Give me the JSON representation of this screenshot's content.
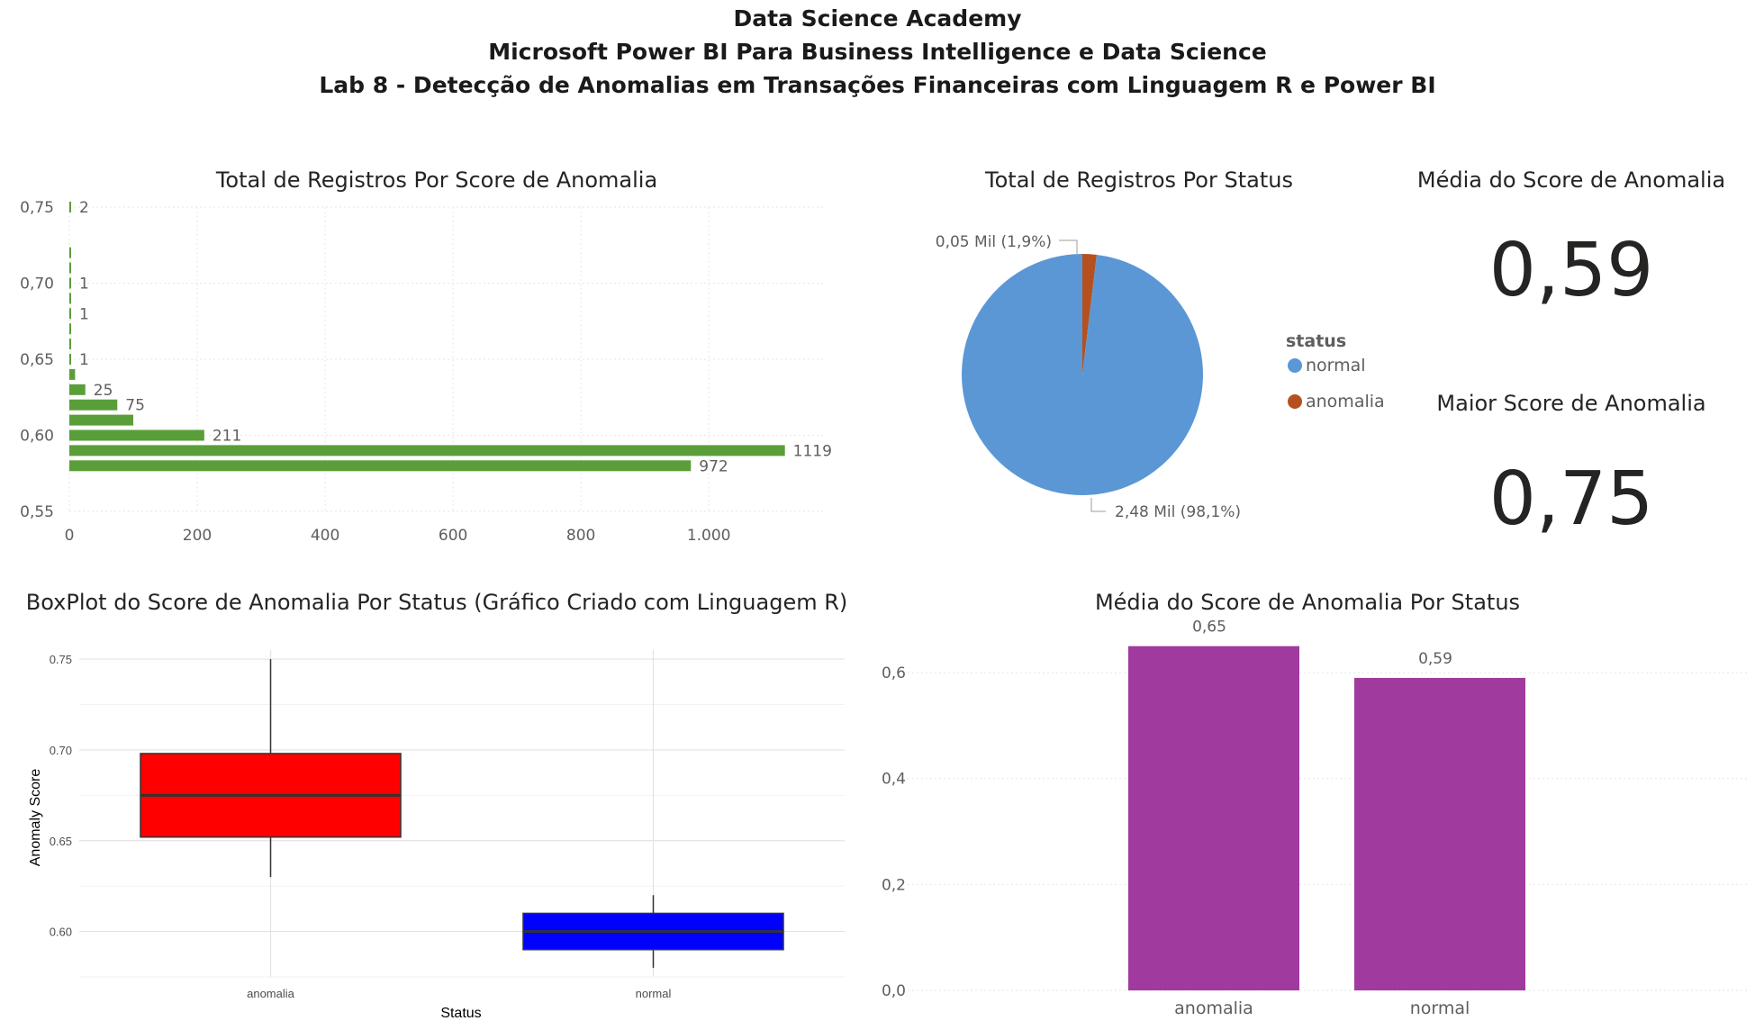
{
  "header": {
    "line1": "Data Science Academy",
    "line2": "Microsoft Power BI Para Business Intelligence e Data Science",
    "line3": "Lab 8 - Detecção de Anomalias em Transações Financeiras com Linguagem R e Power BI"
  },
  "cards": {
    "mean_title": "Média do Score de Anomalia",
    "mean_value": "0,59",
    "max_title": "Maior Score de Anomalia",
    "max_value": "0,75"
  },
  "chart_data": [
    {
      "type": "bar",
      "orientation": "horizontal",
      "title": "Total de Registros Por Score de Anomalia",
      "color": "#5a9e3a",
      "x_ticks": [
        "0",
        "200",
        "400",
        "600",
        "800",
        "1.000"
      ],
      "xlim": [
        0,
        1180
      ],
      "y_ticks": [
        "0,55",
        "0,60",
        "0,65",
        "0,70",
        "0,75"
      ],
      "ylim": [
        0.55,
        0.75
      ],
      "grid": true,
      "bars": [
        {
          "score": 0.75,
          "count": 2,
          "label": "2"
        },
        {
          "score": 0.72,
          "count": 1,
          "label": ""
        },
        {
          "score": 0.71,
          "count": 1,
          "label": ""
        },
        {
          "score": 0.7,
          "count": 1,
          "label": "1"
        },
        {
          "score": 0.69,
          "count": 1,
          "label": ""
        },
        {
          "score": 0.68,
          "count": 1,
          "label": "1"
        },
        {
          "score": 0.67,
          "count": 1,
          "label": ""
        },
        {
          "score": 0.66,
          "count": 1,
          "label": ""
        },
        {
          "score": 0.65,
          "count": 1,
          "label": "1"
        },
        {
          "score": 0.64,
          "count": 9,
          "label": ""
        },
        {
          "score": 0.63,
          "count": 25,
          "label": "25"
        },
        {
          "score": 0.62,
          "count": 75,
          "label": "75"
        },
        {
          "score": 0.61,
          "count": 100,
          "label": ""
        },
        {
          "score": 0.6,
          "count": 211,
          "label": "211"
        },
        {
          "score": 0.59,
          "count": 1119,
          "label": "1119"
        },
        {
          "score": 0.58,
          "count": 972,
          "label": "972"
        }
      ]
    },
    {
      "type": "pie",
      "title": "Total de Registros Por Status",
      "legend_title": "status",
      "legend_position": "right",
      "slices": [
        {
          "name": "normal",
          "value": 2.48,
          "pct": 98.1,
          "label": "2,48 Mil (98,1%)",
          "color": "#5b97d5"
        },
        {
          "name": "anomalia",
          "value": 0.05,
          "pct": 1.9,
          "label": "0,05 Mil (1,9%)",
          "color": "#b5501f"
        }
      ]
    },
    {
      "type": "boxplot",
      "title": "BoxPlot do Score de Anomalia Por Status (Gráfico Criado com Linguagem R)",
      "xlabel": "Status",
      "ylabel": "Anomaly Score",
      "y_ticks": [
        "0.60",
        "0.65",
        "0.70",
        "0.75"
      ],
      "ylim": [
        0.575,
        0.755
      ],
      "boxes": [
        {
          "name": "anomalia",
          "min": 0.63,
          "q1": 0.652,
          "median": 0.675,
          "q3": 0.698,
          "max": 0.75,
          "color": "#ff0000"
        },
        {
          "name": "normal",
          "min": 0.58,
          "q1": 0.59,
          "median": 0.6,
          "q3": 0.61,
          "max": 0.62,
          "color": "#0000ff"
        }
      ]
    },
    {
      "type": "bar",
      "title": "Média do Score de Anomalia Por Status",
      "color": "#a03a9e",
      "categories": [
        "anomalia",
        "normal"
      ],
      "values": [
        0.65,
        0.59
      ],
      "labels": [
        "0,65",
        "0,59"
      ],
      "y_ticks": [
        "0,0",
        "0,2",
        "0,4",
        "0,6"
      ],
      "ylim": [
        0,
        0.68
      ],
      "grid": true
    }
  ]
}
